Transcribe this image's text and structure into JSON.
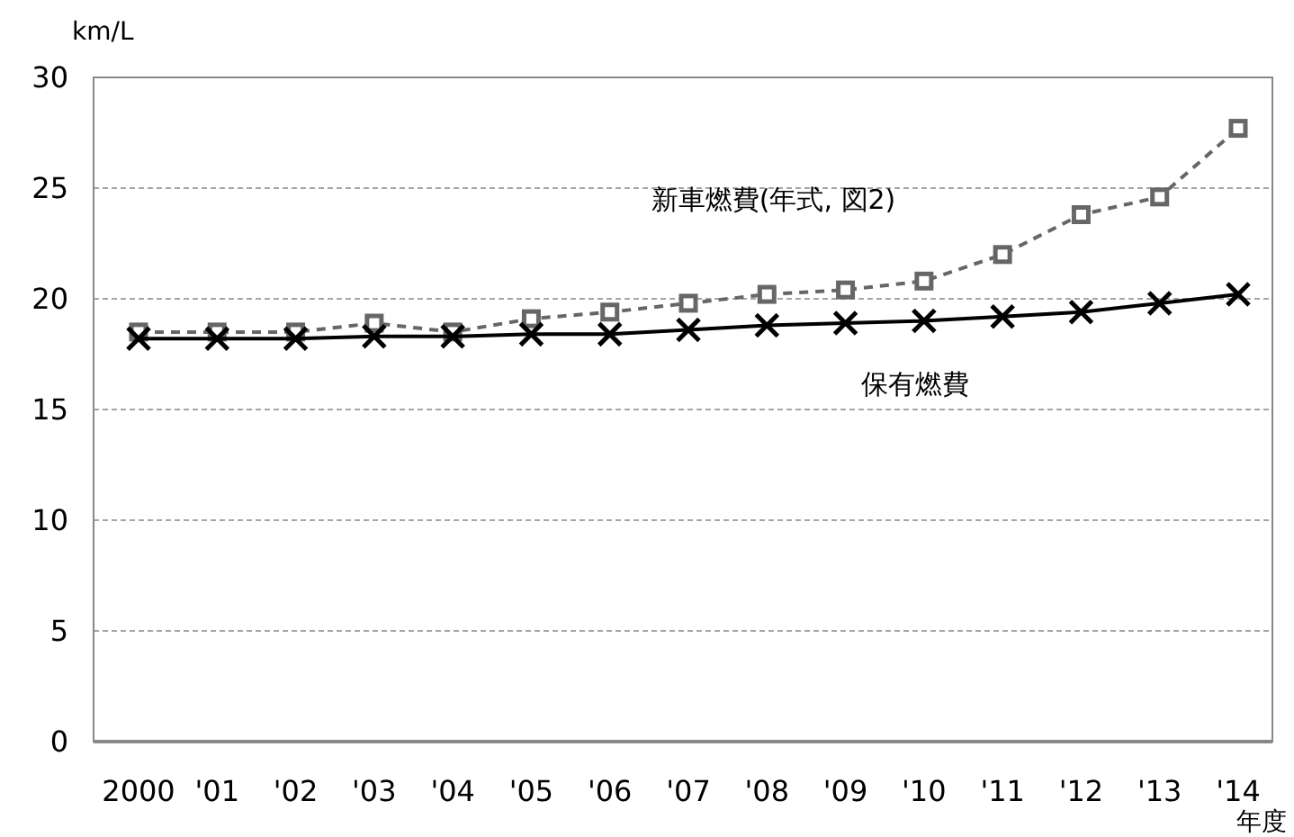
{
  "chart_data": {
    "type": "line",
    "ylabel": "km/L",
    "xlabel": "年度",
    "categories": [
      "2000",
      "'01",
      "'02",
      "'03",
      "'04",
      "'05",
      "'06",
      "'07",
      "'08",
      "'09",
      "'10",
      "'11",
      "'12",
      "'13",
      "'14"
    ],
    "series": [
      {
        "name": "新車燃費(年式, 図2)",
        "color": "#666666",
        "marker": "square",
        "line_style": "dashed",
        "values": [
          18.5,
          18.5,
          18.5,
          18.9,
          18.5,
          19.1,
          19.4,
          19.8,
          20.2,
          20.4,
          20.8,
          22.0,
          23.8,
          24.6,
          27.7
        ]
      },
      {
        "name": "保有燃費",
        "color": "#000000",
        "marker": "cross",
        "line_style": "solid",
        "values": [
          18.2,
          18.2,
          18.2,
          18.3,
          18.3,
          18.4,
          18.4,
          18.6,
          18.8,
          18.9,
          19.0,
          19.2,
          19.4,
          19.8,
          20.2
        ]
      }
    ],
    "ylim": [
      0,
      30
    ],
    "yticks": [
      0,
      5,
      10,
      15,
      20,
      25,
      30
    ],
    "grid": "y"
  }
}
